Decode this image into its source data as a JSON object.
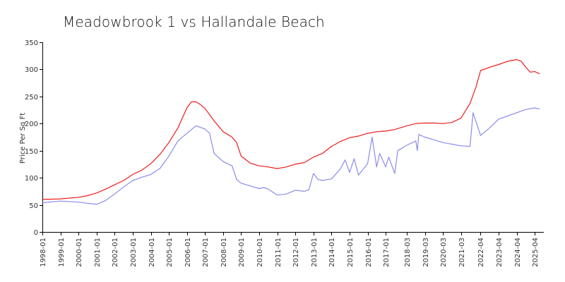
{
  "chart_data": {
    "type": "line",
    "title": "Meadowbrook 1 vs Hallandale Beach",
    "xlabel": "",
    "ylabel": "Price Per Sq Ft",
    "ylim": [
      0,
      350
    ],
    "y_ticks": [
      0,
      50,
      100,
      150,
      200,
      250,
      300,
      350
    ],
    "x_range": [
      "1998-01",
      "2025-10"
    ],
    "x_tick_labels": [
      "1998-01",
      "1999-01",
      "2000-01",
      "2001-01",
      "2002-01",
      "2003-01",
      "2004-01",
      "2005-01",
      "2006-01",
      "2007-01",
      "2008-01",
      "2009-01",
      "2010-01",
      "2011-01",
      "2012-01",
      "2013-01",
      "2014-01",
      "2015-01",
      "2016-01",
      "2017-01",
      "2018-03",
      "2019-03",
      "2020-03",
      "2021-03",
      "2022-04",
      "2023-04",
      "2024-04",
      "2025-04"
    ],
    "grid": false,
    "legend": "none",
    "series": [
      {
        "color": "#ee1c1c",
        "points": [
          [
            "1998-01",
            60
          ],
          [
            "1999-01",
            61
          ],
          [
            "2000-01",
            64
          ],
          [
            "2000-07",
            67
          ],
          [
            "2001-01",
            72
          ],
          [
            "2001-07",
            79
          ],
          [
            "2002-01",
            87
          ],
          [
            "2002-07",
            95
          ],
          [
            "2003-01",
            106
          ],
          [
            "2003-07",
            114
          ],
          [
            "2004-01",
            126
          ],
          [
            "2004-07",
            143
          ],
          [
            "2005-01",
            165
          ],
          [
            "2005-07",
            192
          ],
          [
            "2006-01",
            229
          ],
          [
            "2006-04",
            240
          ],
          [
            "2006-07",
            240
          ],
          [
            "2006-10",
            235
          ],
          [
            "2007-01",
            228
          ],
          [
            "2007-07",
            205
          ],
          [
            "2008-01",
            185
          ],
          [
            "2008-07",
            175
          ],
          [
            "2008-10",
            165
          ],
          [
            "2009-01",
            140
          ],
          [
            "2009-07",
            127
          ],
          [
            "2010-01",
            122
          ],
          [
            "2010-07",
            120
          ],
          [
            "2011-01",
            117
          ],
          [
            "2011-07",
            120
          ],
          [
            "2012-01",
            125
          ],
          [
            "2012-07",
            128
          ],
          [
            "2013-01",
            138
          ],
          [
            "2013-07",
            145
          ],
          [
            "2014-01",
            158
          ],
          [
            "2014-07",
            167
          ],
          [
            "2015-01",
            174
          ],
          [
            "2015-07",
            177
          ],
          [
            "2016-01",
            182
          ],
          [
            "2016-07",
            185
          ],
          [
            "2017-01",
            186
          ],
          [
            "2017-07",
            189
          ],
          [
            "2018-03",
            196
          ],
          [
            "2018-09",
            200
          ],
          [
            "2019-03",
            201
          ],
          [
            "2019-09",
            201
          ],
          [
            "2020-03",
            200
          ],
          [
            "2020-09",
            202
          ],
          [
            "2021-03",
            210
          ],
          [
            "2021-09",
            237
          ],
          [
            "2022-01",
            268
          ],
          [
            "2022-04",
            298
          ],
          [
            "2022-10",
            304
          ],
          [
            "2023-04",
            309
          ],
          [
            "2023-10",
            315
          ],
          [
            "2024-04",
            318
          ],
          [
            "2024-07",
            315
          ],
          [
            "2024-10",
            304
          ],
          [
            "2025-01",
            295
          ],
          [
            "2025-04",
            296
          ],
          [
            "2025-07",
            292
          ]
        ]
      },
      {
        "color": "#8b8bee",
        "points": [
          [
            "1998-01",
            54
          ],
          [
            "1999-01",
            57
          ],
          [
            "2000-01",
            55
          ],
          [
            "2000-07",
            53
          ],
          [
            "2001-01",
            51
          ],
          [
            "2001-07",
            58
          ],
          [
            "2002-01",
            70
          ],
          [
            "2002-07",
            83
          ],
          [
            "2003-01",
            95
          ],
          [
            "2003-07",
            101
          ],
          [
            "2004-01",
            106
          ],
          [
            "2004-07",
            117
          ],
          [
            "2005-01",
            140
          ],
          [
            "2005-07",
            168
          ],
          [
            "2006-01",
            182
          ],
          [
            "2006-07",
            196
          ],
          [
            "2007-01",
            190
          ],
          [
            "2007-04",
            182
          ],
          [
            "2007-07",
            145
          ],
          [
            "2008-01",
            130
          ],
          [
            "2008-07",
            122
          ],
          [
            "2008-10",
            97
          ],
          [
            "2009-01",
            90
          ],
          [
            "2009-07",
            85
          ],
          [
            "2010-01",
            80
          ],
          [
            "2010-04",
            82
          ],
          [
            "2010-07",
            79
          ],
          [
            "2011-01",
            68
          ],
          [
            "2011-07",
            70
          ],
          [
            "2012-01",
            77
          ],
          [
            "2012-07",
            75
          ],
          [
            "2012-10",
            78
          ],
          [
            "2013-01",
            108
          ],
          [
            "2013-04",
            97
          ],
          [
            "2013-07",
            95
          ],
          [
            "2014-01",
            98
          ],
          [
            "2014-07",
            117
          ],
          [
            "2014-10",
            133
          ],
          [
            "2015-01",
            110
          ],
          [
            "2015-04",
            135
          ],
          [
            "2015-07",
            105
          ],
          [
            "2016-01",
            126
          ],
          [
            "2016-04",
            175
          ],
          [
            "2016-07",
            120
          ],
          [
            "2016-09",
            145
          ],
          [
            "2017-01",
            120
          ],
          [
            "2017-03",
            138
          ],
          [
            "2017-07",
            108
          ],
          [
            "2017-09",
            150
          ],
          [
            "2018-03",
            160
          ],
          [
            "2018-09",
            168
          ],
          [
            "2018-10",
            150
          ],
          [
            "2018-11",
            180
          ],
          [
            "2019-03",
            175
          ],
          [
            "2019-09",
            170
          ],
          [
            "2020-03",
            165
          ],
          [
            "2020-09",
            162
          ],
          [
            "2021-03",
            159
          ],
          [
            "2021-09",
            158
          ],
          [
            "2021-11",
            220
          ],
          [
            "2022-04",
            178
          ],
          [
            "2022-10",
            192
          ],
          [
            "2023-04",
            208
          ],
          [
            "2023-10",
            214
          ],
          [
            "2024-04",
            220
          ],
          [
            "2024-10",
            226
          ],
          [
            "2025-04",
            229
          ],
          [
            "2025-07",
            227
          ]
        ]
      }
    ]
  }
}
